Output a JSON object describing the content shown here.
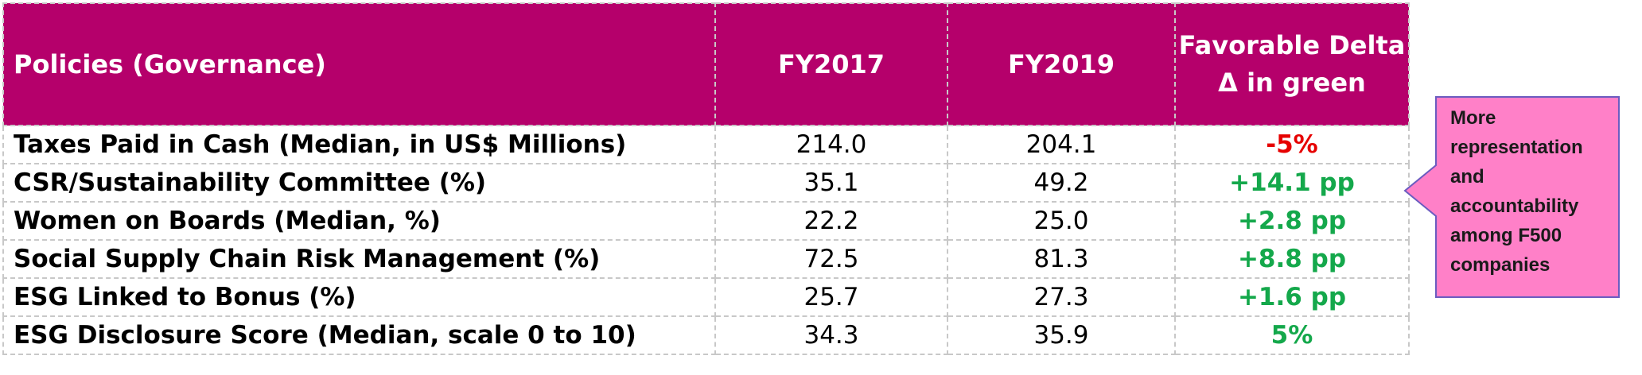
{
  "table": {
    "headers": {
      "policies": "Policies (Governance)",
      "fy2017": "FY2017",
      "fy2019": "FY2019",
      "delta": "Favorable Delta Δ in green"
    },
    "rows": [
      {
        "label": "Taxes Paid in Cash (Median, in US$ Millions)",
        "fy2017": "214.0",
        "fy2019": "204.1",
        "delta": "-5%",
        "favorable": false
      },
      {
        "label": "CSR/Sustainability Committee (%)",
        "fy2017": "35.1",
        "fy2019": "49.2",
        "delta": "+14.1 pp",
        "favorable": true
      },
      {
        "label": "Women on Boards (Median, %)",
        "fy2017": "22.2",
        "fy2019": "25.0",
        "delta": "+2.8 pp",
        "favorable": true
      },
      {
        "label": "Social Supply Chain Risk Management (%)",
        "fy2017": "72.5",
        "fy2019": "81.3",
        "delta": "+8.8 pp",
        "favorable": true
      },
      {
        "label": "ESG Linked to Bonus (%)",
        "fy2017": "25.7",
        "fy2019": "27.3",
        "delta": "+1.6 pp",
        "favorable": true
      },
      {
        "label": "ESG Disclosure Score (Median, scale 0 to 10)",
        "fy2017": "34.3",
        "fy2019": "35.9",
        "delta": "5%",
        "favorable": true
      }
    ]
  },
  "callout": {
    "text": "More\nrepresentation\nand\naccountability\namong F500\ncompanies"
  },
  "colors": {
    "header_bg": "#b5006b",
    "favorable": "#14a84b",
    "unfavorable": "#e60000",
    "callout_fill": "#ff80c8",
    "callout_border": "#6b5cc0"
  }
}
